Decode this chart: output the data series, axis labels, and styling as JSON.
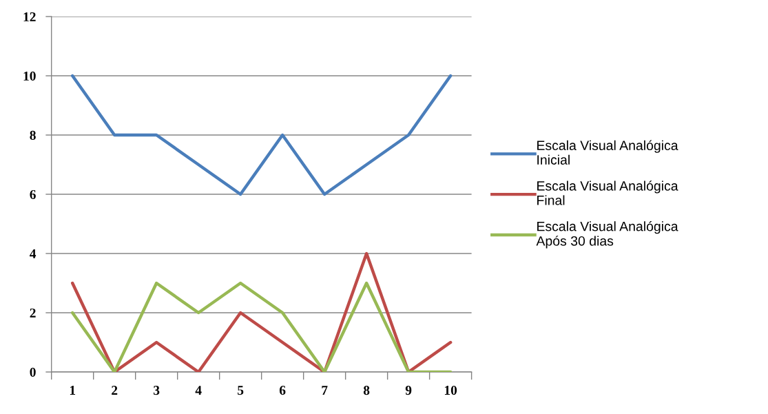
{
  "chart_data": {
    "type": "line",
    "categories": [
      "1",
      "2",
      "3",
      "4",
      "5",
      "6",
      "7",
      "8",
      "9",
      "10"
    ],
    "series": [
      {
        "name": "Escala Visual Analógica\nInicial",
        "color": "#4a7ebb",
        "values": [
          10,
          8,
          8,
          7,
          6,
          8,
          6,
          7,
          8,
          10
        ]
      },
      {
        "name": "Escala Visual Analógica\nFinal",
        "color": "#be4b48",
        "values": [
          3,
          0,
          1,
          0,
          2,
          1,
          0,
          4,
          0,
          1
        ]
      },
      {
        "name": "Escala Visual Analógica\nApós 30 dias",
        "color": "#98b954",
        "values": [
          2,
          0,
          3,
          2,
          3,
          2,
          0,
          3,
          0,
          0
        ]
      }
    ],
    "ylim": [
      0,
      12
    ],
    "yticks": [
      0,
      2,
      4,
      6,
      8,
      10,
      12
    ],
    "grid": "y",
    "legend": "right",
    "marker": "none",
    "line_style": "solid"
  }
}
